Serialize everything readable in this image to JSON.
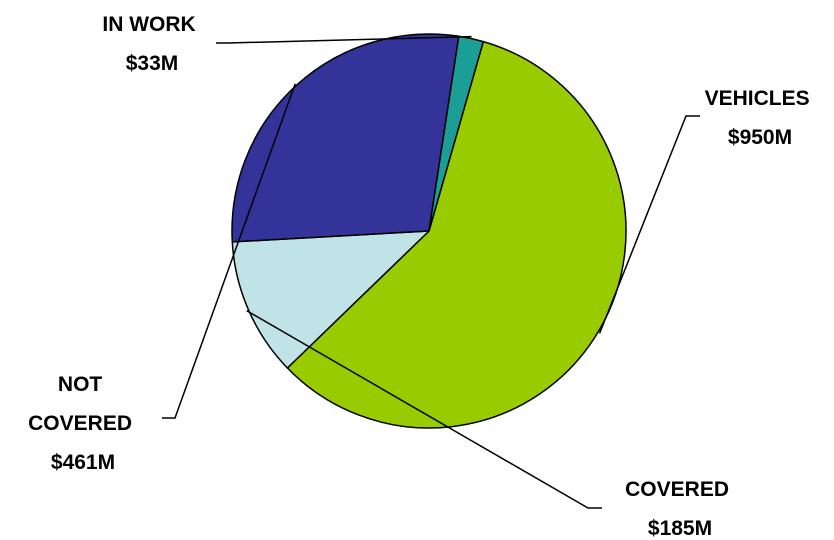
{
  "chart_data": {
    "type": "pie",
    "title": "",
    "slices": [
      {
        "name": "VEHICLES",
        "value": 950,
        "value_label": "$950M",
        "label_lines": [
          "VEHICLES",
          "$950M"
        ],
        "color": "#99cc00"
      },
      {
        "name": "COVERED",
        "value": 185,
        "value_label": "$185M",
        "label_lines": [
          "COVERED",
          "$185M"
        ],
        "color": "#bfe3e6"
      },
      {
        "name": "NOT COVERED",
        "value": 461,
        "value_label": "$461M",
        "label_lines": [
          "NOT",
          "COVERED",
          "$461M"
        ],
        "color": "#333399"
      },
      {
        "name": "IN WORK",
        "value": 33,
        "value_label": "$33M",
        "label_lines": [
          "IN WORK",
          "$33M"
        ],
        "color": "#1a9e96"
      }
    ],
    "legend": "none",
    "slice_outline_color": "#000000"
  }
}
